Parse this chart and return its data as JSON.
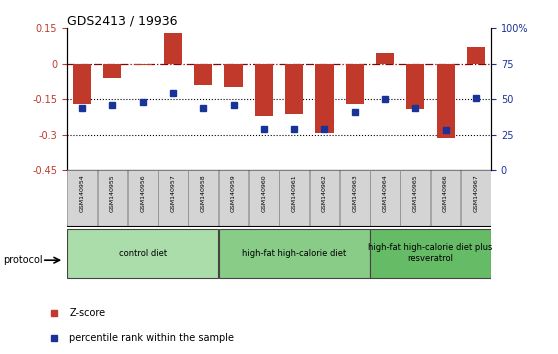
{
  "title": "GDS2413 / 19936",
  "samples": [
    "GSM140954",
    "GSM140955",
    "GSM140956",
    "GSM140957",
    "GSM140958",
    "GSM140959",
    "GSM140960",
    "GSM140961",
    "GSM140962",
    "GSM140963",
    "GSM140964",
    "GSM140965",
    "GSM140966",
    "GSM140967"
  ],
  "zscore": [
    -0.17,
    -0.06,
    -0.005,
    0.13,
    -0.09,
    -0.1,
    -0.22,
    -0.215,
    -0.295,
    -0.17,
    0.045,
    -0.19,
    -0.315,
    0.07
  ],
  "percentile": [
    44,
    46,
    48,
    54,
    44,
    46,
    29,
    29,
    29,
    41,
    50,
    44,
    28,
    51
  ],
  "ylim_left": [
    -0.45,
    0.15
  ],
  "ylim_right": [
    0,
    100
  ],
  "yticks_left": [
    0.15,
    0.0,
    -0.15,
    -0.3,
    -0.45
  ],
  "yticks_left_labels": [
    "0.15",
    "0",
    "-0.15",
    "-0.3",
    "-0.45"
  ],
  "yticks_right": [
    100,
    75,
    50,
    25,
    0
  ],
  "yticks_right_labels": [
    "100%",
    "75",
    "50",
    "25",
    "0"
  ],
  "hline_zero": 0.0,
  "hlines_dotted": [
    -0.15,
    -0.3
  ],
  "bar_color": "#c0392b",
  "dot_color": "#1a3399",
  "groups": [
    {
      "label": "control diet",
      "start": 0,
      "end": 4,
      "color": "#aaddaa"
    },
    {
      "label": "high-fat high-calorie diet",
      "start": 5,
      "end": 9,
      "color": "#88cc88"
    },
    {
      "label": "high-fat high-calorie diet plus\nresveratrol",
      "start": 10,
      "end": 13,
      "color": "#66bb66"
    }
  ],
  "protocol_label": "protocol",
  "legend_zscore": "Z-score",
  "legend_percentile": "percentile rank within the sample",
  "bar_width": 0.6
}
